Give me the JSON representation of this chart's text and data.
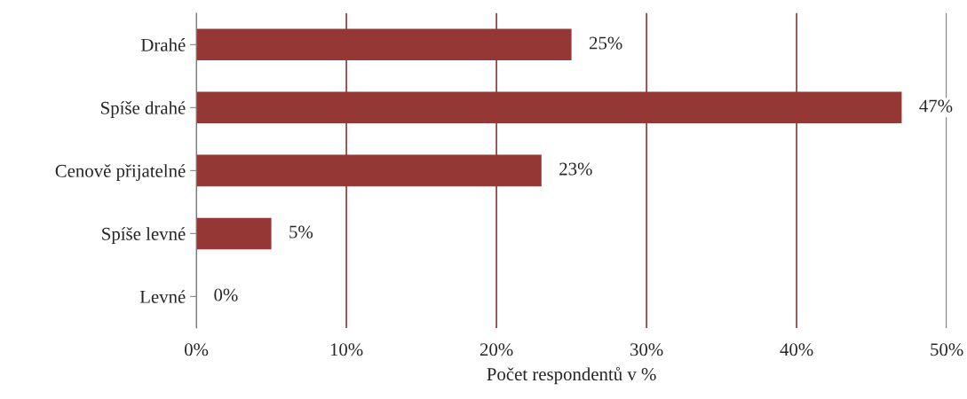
{
  "chart_data": {
    "type": "bar",
    "orientation": "horizontal",
    "xlabel": "Počet respondentů v %",
    "categories": [
      "Drahé",
      "Spíše drahé",
      "Cenově přijatelné",
      "Spíše levné",
      "Levné"
    ],
    "values": [
      25,
      47,
      23,
      5,
      0
    ],
    "value_labels": [
      "25%",
      "47%",
      "23%",
      "5%",
      "0%"
    ],
    "color": "#953735",
    "xlim": [
      0,
      50
    ],
    "xticks": [
      {
        "value": 0,
        "label": "0%"
      },
      {
        "value": 10,
        "label": "10%"
      },
      {
        "value": 20,
        "label": "20%"
      },
      {
        "value": 30,
        "label": "30%"
      },
      {
        "value": 40,
        "label": "40%"
      },
      {
        "value": 50,
        "label": "50%"
      }
    ],
    "grid": "x"
  }
}
